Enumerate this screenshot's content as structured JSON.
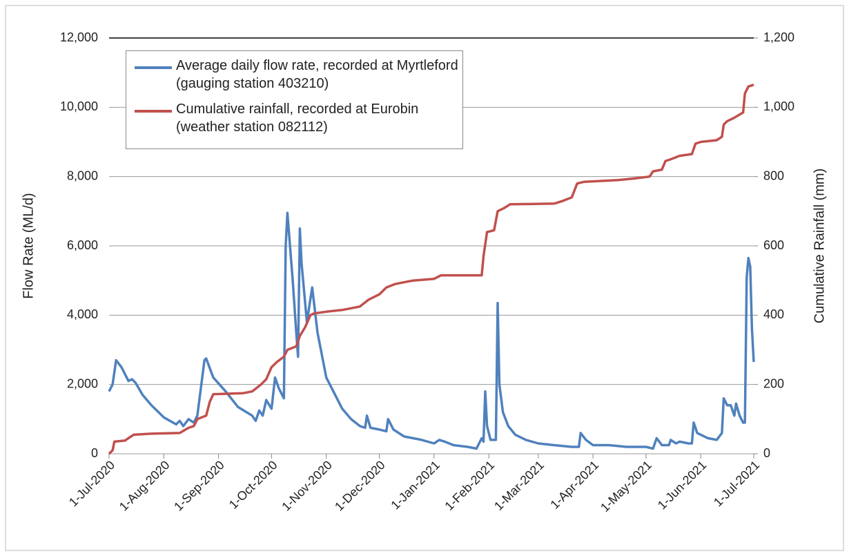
{
  "chart_data": {
    "type": "line",
    "ylabel": "Flow Rate (ML/d)",
    "y2label": "Cumulative Rainfall (mm)",
    "xlim": [
      "2020-07-01",
      "2021-07-01"
    ],
    "xticks": [
      {
        "value": "2020-07-01",
        "label": "1-Jul-2020"
      },
      {
        "value": "2020-08-01",
        "label": "1-Aug-2020"
      },
      {
        "value": "2020-09-01",
        "label": "1-Sep-2020"
      },
      {
        "value": "2020-10-01",
        "label": "1-Oct-2020"
      },
      {
        "value": "2020-11-01",
        "label": "1-Nov-2020"
      },
      {
        "value": "2020-12-01",
        "label": "1-Dec-2020"
      },
      {
        "value": "2021-01-01",
        "label": "1-Jan-2021"
      },
      {
        "value": "2021-02-01",
        "label": "1-Feb-2021"
      },
      {
        "value": "2021-03-01",
        "label": "1-Mar-2021"
      },
      {
        "value": "2021-04-01",
        "label": "1-Apr-2021"
      },
      {
        "value": "2021-05-01",
        "label": "1-May-2021"
      },
      {
        "value": "2021-06-01",
        "label": "1-Jun-2021"
      },
      {
        "value": "2021-07-01",
        "label": "1-Jul-2021"
      }
    ],
    "ylim": [
      0,
      12000
    ],
    "yticks": [
      0,
      {
        "value": 2000,
        "label": "2,000"
      },
      {
        "value": 4000,
        "label": "4,000"
      },
      {
        "value": 6000,
        "label": "6,000"
      },
      {
        "value": 8000,
        "label": "8,000"
      },
      {
        "value": 10000,
        "label": "10,000"
      },
      {
        "value": 12000,
        "label": "12,000"
      }
    ],
    "y2lim": [
      0,
      1200
    ],
    "y2ticks": [
      0,
      200,
      400,
      600,
      800,
      {
        "value": 1000,
        "label": "1,000"
      },
      {
        "value": 1200,
        "label": "1,200"
      }
    ],
    "grid": true,
    "legend": "upper left",
    "series": [
      {
        "name": "Average daily flow rate, recorded at Myrtleford (gauging station 403210)",
        "color": "#4f81bd",
        "x": [
          "2020-07-01",
          "2020-07-03",
          "2020-07-05",
          "2020-07-08",
          "2020-07-12",
          "2020-07-14",
          "2020-07-16",
          "2020-07-20",
          "2020-07-25",
          "2020-08-01",
          "2020-08-08",
          "2020-08-10",
          "2020-08-12",
          "2020-08-15",
          "2020-08-18",
          "2020-08-20",
          "2020-08-24",
          "2020-08-25",
          "2020-08-29",
          "2020-09-05",
          "2020-09-12",
          "2020-09-20",
          "2020-09-22",
          "2020-09-24",
          "2020-09-26",
          "2020-09-28",
          "2020-10-01",
          "2020-10-03",
          "2020-10-05",
          "2020-10-08",
          "2020-10-09",
          "2020-10-10",
          "2020-10-13",
          "2020-10-15",
          "2020-10-16",
          "2020-10-17",
          "2020-10-18",
          "2020-10-21",
          "2020-10-24",
          "2020-10-27",
          "2020-11-01",
          "2020-11-05",
          "2020-11-10",
          "2020-11-15",
          "2020-11-20",
          "2020-11-23",
          "2020-11-24",
          "2020-11-26",
          "2020-12-01",
          "2020-12-05",
          "2020-12-06",
          "2020-12-09",
          "2020-12-15",
          "2020-12-20",
          "2020-12-25",
          "2021-01-01",
          "2021-01-04",
          "2021-01-07",
          "2021-01-12",
          "2021-01-20",
          "2021-01-25",
          "2021-01-28",
          "2021-01-29",
          "2021-01-30",
          "2021-01-31",
          "2021-02-02",
          "2021-02-05",
          "2021-02-06",
          "2021-02-07",
          "2021-02-09",
          "2021-02-12",
          "2021-02-16",
          "2021-02-22",
          "2021-03-01",
          "2021-03-10",
          "2021-03-20",
          "2021-03-24",
          "2021-03-25",
          "2021-03-28",
          "2021-04-01",
          "2021-04-10",
          "2021-04-20",
          "2021-05-01",
          "2021-05-05",
          "2021-05-07",
          "2021-05-10",
          "2021-05-14",
          "2021-05-15",
          "2021-05-18",
          "2021-05-20",
          "2021-05-25",
          "2021-05-27",
          "2021-05-28",
          "2021-05-30",
          "2021-06-05",
          "2021-06-10",
          "2021-06-13",
          "2021-06-14",
          "2021-06-16",
          "2021-06-18",
          "2021-06-20",
          "2021-06-21",
          "2021-06-23",
          "2021-06-25",
          "2021-06-26",
          "2021-06-27",
          "2021-06-28",
          "2021-06-29",
          "2021-06-30",
          "2021-07-01"
        ],
        "values": [
          1800,
          2000,
          2700,
          2500,
          2100,
          2150,
          2050,
          1700,
          1400,
          1050,
          850,
          950,
          800,
          1000,
          900,
          1100,
          2700,
          2750,
          2200,
          1800,
          1350,
          1100,
          950,
          1250,
          1100,
          1550,
          1300,
          2200,
          1900,
          1600,
          6000,
          6950,
          5000,
          3500,
          2800,
          6500,
          5500,
          3800,
          4800,
          3500,
          2200,
          1800,
          1300,
          1000,
          800,
          750,
          1100,
          750,
          700,
          650,
          1000,
          700,
          500,
          450,
          400,
          300,
          400,
          350,
          250,
          200,
          150,
          450,
          350,
          1800,
          800,
          400,
          400,
          4350,
          2000,
          1200,
          800,
          550,
          400,
          300,
          250,
          200,
          200,
          600,
          400,
          250,
          250,
          200,
          200,
          150,
          450,
          250,
          250,
          400,
          300,
          350,
          300,
          300,
          900,
          600,
          450,
          400,
          600,
          1600,
          1400,
          1400,
          1100,
          1450,
          1100,
          900,
          900,
          5100,
          5650,
          5400,
          3600,
          2650
        ]
      },
      {
        "name": "Cumulative rainfall, recorded at Eurobin (weather station 082112)",
        "color": "#c0504d",
        "axis": "y2",
        "x": [
          "2020-07-01",
          "2020-07-03",
          "2020-07-04",
          "2020-07-10",
          "2020-07-12",
          "2020-07-15",
          "2020-07-25",
          "2020-08-10",
          "2020-08-15",
          "2020-08-18",
          "2020-08-20",
          "2020-08-25",
          "2020-08-27",
          "2020-08-29",
          "2020-09-15",
          "2020-09-20",
          "2020-09-25",
          "2020-09-28",
          "2020-10-01",
          "2020-10-04",
          "2020-10-08",
          "2020-10-10",
          "2020-10-15",
          "2020-10-17",
          "2020-10-20",
          "2020-10-23",
          "2020-10-25",
          "2020-11-01",
          "2020-11-10",
          "2020-11-15",
          "2020-11-20",
          "2020-11-25",
          "2020-12-01",
          "2020-12-05",
          "2020-12-10",
          "2020-12-15",
          "2020-12-20",
          "2021-01-01",
          "2021-01-05",
          "2021-01-28",
          "2021-01-29",
          "2021-01-31",
          "2021-02-04",
          "2021-02-06",
          "2021-02-10",
          "2021-02-13",
          "2021-03-10",
          "2021-03-15",
          "2021-03-20",
          "2021-03-23",
          "2021-03-27",
          "2021-04-15",
          "2021-04-25",
          "2021-05-03",
          "2021-05-05",
          "2021-05-10",
          "2021-05-12",
          "2021-05-15",
          "2021-05-20",
          "2021-05-27",
          "2021-05-29",
          "2021-06-01",
          "2021-06-10",
          "2021-06-13",
          "2021-06-14",
          "2021-06-16",
          "2021-06-20",
          "2021-06-25",
          "2021-06-26",
          "2021-06-28",
          "2021-07-01"
        ],
        "values": [
          0,
          10,
          35,
          38,
          45,
          55,
          58,
          60,
          75,
          80,
          100,
          110,
          150,
          172,
          175,
          180,
          200,
          215,
          250,
          265,
          280,
          300,
          310,
          340,
          365,
          400,
          405,
          410,
          415,
          420,
          425,
          445,
          460,
          480,
          490,
          495,
          500,
          505,
          515,
          515,
          570,
          640,
          645,
          700,
          710,
          720,
          722,
          730,
          740,
          780,
          785,
          790,
          795,
          800,
          815,
          820,
          845,
          850,
          860,
          865,
          895,
          900,
          905,
          915,
          950,
          960,
          970,
          985,
          1040,
          1060,
          1065
        ]
      }
    ]
  }
}
